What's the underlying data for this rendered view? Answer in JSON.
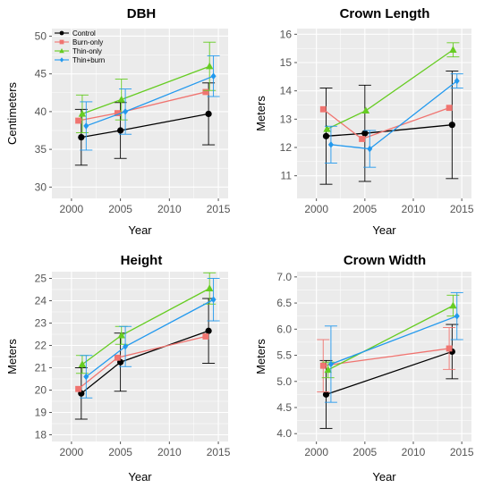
{
  "colors": {
    "Control": "#000000",
    "Burn-only": "#f07470",
    "Thin-only": "#66cc22",
    "Thin+burn": "#2299ee",
    "panel_bg": "#ebebeb",
    "grid": "#ffffff"
  },
  "chart_data": [
    {
      "type": "line",
      "title": "DBH",
      "xlabel": "Year",
      "ylabel": "Centimeters",
      "xlim": [
        1998,
        2016
      ],
      "ylim": [
        28.5,
        51
      ],
      "xticks": [
        2000,
        2005,
        2010,
        2015
      ],
      "yticks": [
        30,
        35,
        40,
        45,
        50
      ],
      "xtick_labels": [
        "2000",
        "2005",
        "2010",
        "2015"
      ],
      "ytick_labels": [
        "30",
        "35",
        "40",
        "45",
        "50"
      ],
      "grid": true,
      "legend": {
        "placement": "top-left",
        "entries": [
          "Control",
          "Burn-only",
          "Thin-only",
          "Thin+burn"
        ]
      },
      "series": [
        {
          "name": "Control",
          "marker": "circle",
          "x": [
            2001,
            2005,
            2014
          ],
          "y": [
            36.6,
            37.5,
            39.7
          ],
          "err": [
            3.7,
            3.7,
            4.1
          ]
        },
        {
          "name": "Burn-only",
          "marker": "square",
          "x": [
            2000.7,
            2004.7,
            2013.7
          ],
          "y": [
            38.8,
            39.8,
            42.6
          ],
          "err": [
            0,
            0,
            0
          ]
        },
        {
          "name": "Thin-only",
          "marker": "triangle",
          "x": [
            2001.1,
            2005.1,
            2014.1
          ],
          "y": [
            39.7,
            41.6,
            46.0
          ],
          "err": [
            2.5,
            2.7,
            3.2
          ]
        },
        {
          "name": "Thin+burn",
          "marker": "diamond",
          "x": [
            2001.5,
            2005.5,
            2014.5
          ],
          "y": [
            38.1,
            40.0,
            44.7
          ],
          "err": [
            3.2,
            3.0,
            2.7
          ]
        }
      ]
    },
    {
      "type": "line",
      "title": "Crown Length",
      "xlabel": "Year",
      "ylabel": "Meters",
      "xlim": [
        1998,
        2016
      ],
      "ylim": [
        10.2,
        16.2
      ],
      "xticks": [
        2000,
        2005,
        2010,
        2015
      ],
      "yticks": [
        11,
        12,
        13,
        14,
        15,
        16
      ],
      "xtick_labels": [
        "2000",
        "2005",
        "2010",
        "2015"
      ],
      "ytick_labels": [
        "11",
        "12",
        "13",
        "14",
        "15",
        "16"
      ],
      "grid": true,
      "series": [
        {
          "name": "Control",
          "marker": "circle",
          "x": [
            2001,
            2005,
            2014
          ],
          "y": [
            12.4,
            12.5,
            12.8
          ],
          "err": [
            1.7,
            1.7,
            1.9
          ]
        },
        {
          "name": "Burn-only",
          "marker": "square",
          "x": [
            2000.7,
            2004.7,
            2013.7
          ],
          "y": [
            13.35,
            12.3,
            13.4
          ],
          "err": [
            0,
            0,
            0
          ]
        },
        {
          "name": "Thin-only",
          "marker": "triangle",
          "x": [
            2001.1,
            2005.1,
            2014.1
          ],
          "y": [
            12.65,
            13.3,
            15.45
          ],
          "err": [
            0,
            0,
            0.25
          ]
        },
        {
          "name": "Thin+burn",
          "marker": "diamond",
          "x": [
            2001.5,
            2005.5,
            2014.5
          ],
          "y": [
            12.1,
            11.95,
            14.35
          ],
          "err": [
            0.65,
            0.65,
            0.25
          ]
        }
      ]
    },
    {
      "type": "line",
      "title": "Height",
      "xlabel": "Year",
      "ylabel": "Meters",
      "xlim": [
        1998,
        2016
      ],
      "ylim": [
        17.7,
        25.3
      ],
      "xticks": [
        2000,
        2005,
        2010,
        2015
      ],
      "yticks": [
        18,
        19,
        20,
        21,
        22,
        23,
        24,
        25
      ],
      "xtick_labels": [
        "2000",
        "2005",
        "2010",
        "2015"
      ],
      "ytick_labels": [
        "18",
        "19",
        "20",
        "21",
        "22",
        "23",
        "24",
        "25"
      ],
      "grid": true,
      "series": [
        {
          "name": "Control",
          "marker": "circle",
          "x": [
            2001,
            2005,
            2014
          ],
          "y": [
            19.85,
            21.25,
            22.65
          ],
          "err": [
            1.15,
            1.3,
            1.45
          ]
        },
        {
          "name": "Burn-only",
          "marker": "square",
          "x": [
            2000.7,
            2004.7,
            2013.7
          ],
          "y": [
            20.05,
            21.45,
            22.4
          ],
          "err": [
            0,
            0,
            0
          ]
        },
        {
          "name": "Thin-only",
          "marker": "triangle",
          "x": [
            2001.1,
            2005.1,
            2014.1
          ],
          "y": [
            21.15,
            22.45,
            24.55
          ],
          "err": [
            0.4,
            0.4,
            0.7
          ]
        },
        {
          "name": "Thin+burn",
          "marker": "diamond",
          "x": [
            2001.5,
            2005.5,
            2014.5
          ],
          "y": [
            20.6,
            21.95,
            24.05
          ],
          "err": [
            0.95,
            0.9,
            0.95
          ]
        }
      ]
    },
    {
      "type": "line",
      "title": "Crown Width",
      "xlabel": "Year",
      "ylabel": "Meters",
      "xlim": [
        1998,
        2016
      ],
      "ylim": [
        3.85,
        7.1
      ],
      "xticks": [
        2000,
        2005,
        2010,
        2015
      ],
      "yticks": [
        4.0,
        4.5,
        5.0,
        5.5,
        6.0,
        6.5,
        7.0
      ],
      "xtick_labels": [
        "2000",
        "2005",
        "2010",
        "2015"
      ],
      "ytick_labels": [
        "4.0",
        "4.5",
        "5.0",
        "5.5",
        "6.0",
        "6.5",
        "7.0"
      ],
      "grid": true,
      "series": [
        {
          "name": "Control",
          "marker": "circle",
          "x": [
            2001,
            2014
          ],
          "y": [
            4.75,
            5.57
          ],
          "err": [
            0.65,
            0.52
          ]
        },
        {
          "name": "Burn-only",
          "marker": "square",
          "x": [
            2000.7,
            2013.7
          ],
          "y": [
            5.3,
            5.63
          ],
          "err": [
            0.5,
            0.4
          ]
        },
        {
          "name": "Thin-only",
          "marker": "triangle",
          "x": [
            2001.2,
            2014.1
          ],
          "y": [
            5.22,
            6.45
          ],
          "err": [
            0.15,
            0.2
          ]
        },
        {
          "name": "Thin+burn",
          "marker": "diamond",
          "x": [
            2001.5,
            2014.5
          ],
          "y": [
            5.33,
            6.25
          ],
          "err": [
            0.73,
            0.45
          ]
        }
      ]
    }
  ]
}
